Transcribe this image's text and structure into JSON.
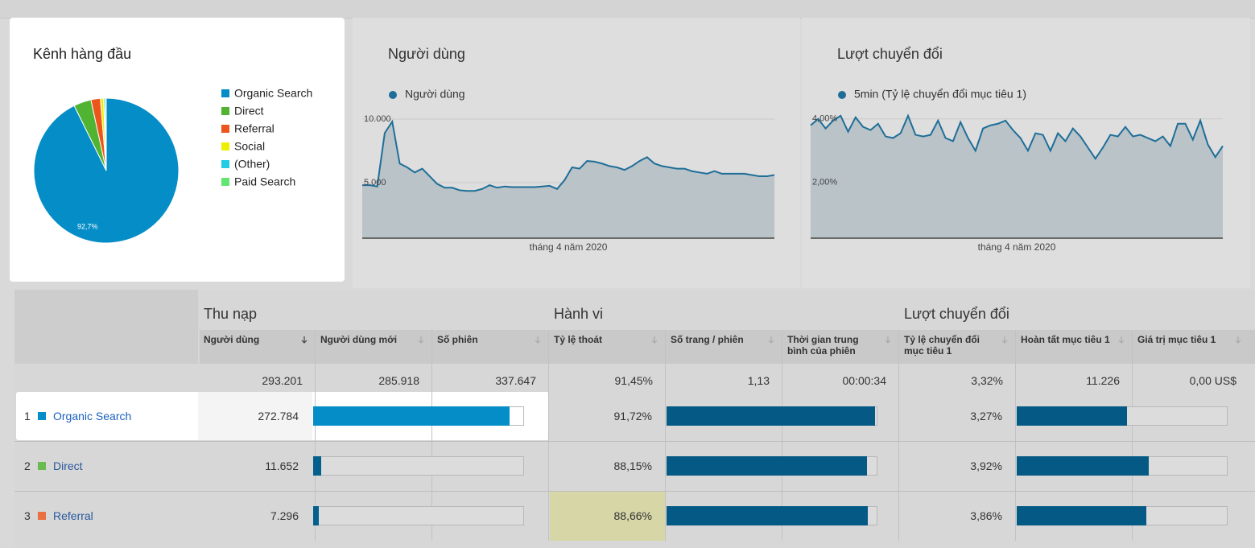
{
  "chart_data": [
    {
      "type": "pie",
      "title": "Kênh hàng đầu",
      "categories": [
        "Organic Search",
        "Direct",
        "Referral",
        "Social",
        "(Other)",
        "Paid Search"
      ],
      "values": [
        92.7,
        3.9,
        2.1,
        0.7,
        0.3,
        0.3
      ],
      "value_labels": [
        "92,7%",
        null,
        null,
        null,
        null,
        null
      ],
      "colors": [
        "#058dc7",
        "#50b432",
        "#ed561b",
        "#edef00",
        "#24cbe5",
        "#64e572"
      ]
    },
    {
      "type": "line",
      "title": "Người dùng",
      "xlabel": "tháng 4 năm 2020",
      "series": [
        {
          "name": "Người dùng",
          "color": "#1f6e98",
          "values": [
            4800,
            4800,
            4700,
            8900,
            9800,
            6500,
            6200,
            5800,
            6100,
            5500,
            4900,
            4600,
            4600,
            4400,
            4350,
            4350,
            4500,
            4800,
            4600,
            4700,
            4650,
            4650,
            4650,
            4650,
            4700,
            4750,
            4500,
            5200,
            6200,
            6100,
            6700,
            6650,
            6500,
            6300,
            6200,
            6000,
            6300,
            6700,
            7000,
            6500,
            6300,
            6200,
            6100,
            6100,
            5900,
            5800,
            5700,
            5900,
            5700,
            5700,
            5700,
            5700,
            5600,
            5500,
            5500,
            5600
          ]
        }
      ],
      "ylim": [
        630,
        11010
      ],
      "yticks": [
        {
          "value": 10000,
          "label": "10.000"
        },
        {
          "value": 5000,
          "label": "5.000"
        }
      ]
    },
    {
      "type": "line",
      "title": "Lượt chuyển đổi",
      "xlabel": "tháng 4 năm 2020",
      "series": [
        {
          "name": "5min (Tỷ lệ chuyển đổi mục tiêu 1)",
          "color": "#1f6e98",
          "values": [
            3.8,
            4.0,
            3.7,
            3.95,
            4.1,
            3.6,
            4.05,
            3.75,
            3.65,
            3.85,
            3.45,
            3.4,
            3.55,
            4.1,
            3.5,
            3.45,
            3.5,
            3.95,
            3.4,
            3.3,
            3.9,
            3.4,
            3.0,
            3.7,
            3.8,
            3.85,
            3.95,
            3.65,
            3.4,
            3.0,
            3.55,
            3.5,
            3.0,
            3.55,
            3.3,
            3.7,
            3.45,
            3.1,
            2.75,
            3.1,
            3.5,
            3.45,
            3.75,
            3.45,
            3.5,
            3.4,
            3.3,
            3.45,
            3.15,
            3.85,
            3.85,
            3.35,
            3.95,
            3.2,
            2.8,
            3.15
          ]
        }
      ],
      "ylim": [
        0.25,
        4.4
      ],
      "yticks": [
        {
          "value": 4,
          "label": "4,00%"
        },
        {
          "value": 2,
          "label": "2,00%"
        }
      ]
    }
  ],
  "table": {
    "groups": [
      "Thu nạp",
      "Hành vi",
      "Lượt chuyển đổi"
    ],
    "columns": [
      "Người dùng",
      "Người dùng mới",
      "Số phiên",
      "Tỷ lệ thoát",
      "Số trang / phiên",
      "Thời gian trung bình của phiên",
      "Tỷ lệ chuyển đổi mục tiêu 1",
      "Hoàn tất mục tiêu 1",
      "Giá trị mục tiêu 1"
    ],
    "totals": [
      "293.201",
      "285.918",
      "337.647",
      "91,45%",
      "1,13",
      "00:00:34",
      "3,32%",
      "11.226",
      "0,00 US$"
    ],
    "rows": [
      {
        "rank": "1",
        "channel": "Organic Search",
        "users": "272.784",
        "bounce": "91,72%",
        "conversion": "3,27%"
      },
      {
        "rank": "2",
        "channel": "Direct",
        "users": "11.652",
        "bounce": "88,15%",
        "conversion": "3,92%"
      },
      {
        "rank": "3",
        "channel": "Referral",
        "users": "7.296",
        "bounce": "88,66%",
        "conversion": "3,86%"
      }
    ]
  }
}
